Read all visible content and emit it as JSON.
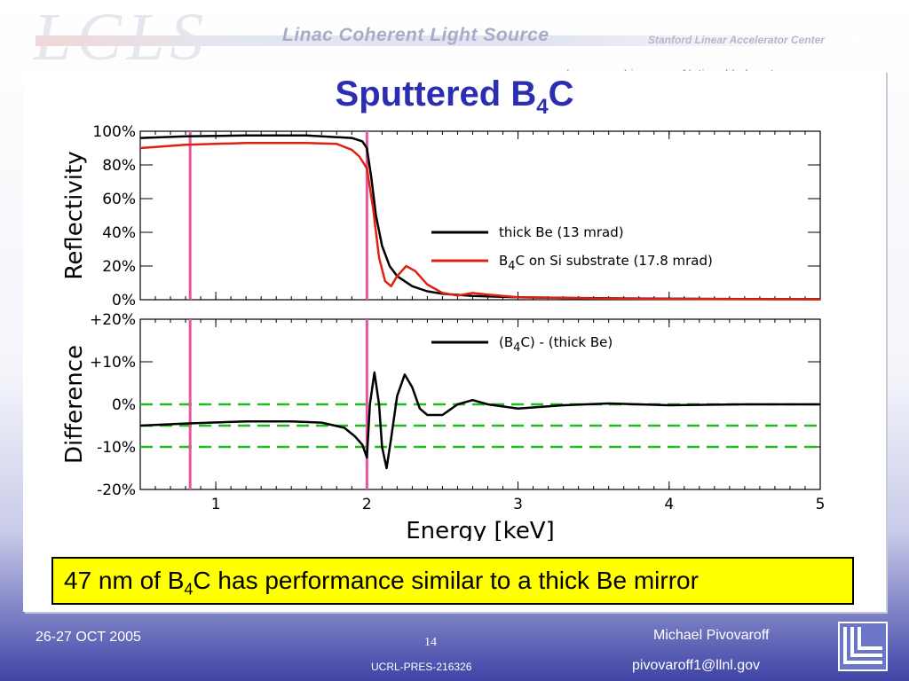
{
  "header": {
    "logo_text": "LCLS",
    "main": "Linac Coherent Light Source",
    "slac": "Stanford Linear Accelerator Center",
    "llnl": "Lawrence Livermore National Laboratory"
  },
  "slide": {
    "title_main": "Sputtered B",
    "title_sub": "4",
    "title_end": "C"
  },
  "caption": {
    "pre": "47 nm of B",
    "sub": "4",
    "post": "C has performance similar to a thick Be mirror"
  },
  "footer": {
    "date": "26-27 OCT 2005",
    "page": "14",
    "code": "UCRL-PRES-216326",
    "name": "Michael Pivovaroff",
    "email": "pivovaroff1@llnl.gov"
  },
  "colors": {
    "title": "#2b2eb0",
    "caption_bg": "#ffff00",
    "black_series": "#000000",
    "red_series": "#dd2211",
    "marker": "#e6559d",
    "ref_lines": "#22bb22"
  },
  "chart_data": [
    {
      "type": "line",
      "ylabel": "Reflectivity",
      "xlim": [
        0.5,
        5
      ],
      "ylim": [
        0,
        100
      ],
      "x_ticks": [
        1,
        2,
        3,
        4,
        5
      ],
      "y_ticks": [
        0,
        20,
        40,
        60,
        80,
        100
      ],
      "y_tick_labels": [
        "0%",
        "20%",
        "40%",
        "60%",
        "80%",
        "100%"
      ],
      "vertical_markers": [
        0.83,
        2.0
      ],
      "series": [
        {
          "name": "thick Be (13 mrad)",
          "color": "#000000",
          "x": [
            0.5,
            0.8,
            1.2,
            1.6,
            1.9,
            1.97,
            2.0,
            2.03,
            2.06,
            2.1,
            2.15,
            2.2,
            2.3,
            2.4,
            2.5,
            2.7,
            3.0,
            3.5,
            4.0,
            4.5,
            5.0
          ],
          "y": [
            96,
            97,
            97.5,
            97.5,
            96,
            94,
            90,
            72,
            50,
            32,
            20,
            14,
            8,
            5,
            3.5,
            2.2,
            1.4,
            0.9,
            0.6,
            0.4,
            0.3
          ]
        },
        {
          "name": "B4C on Si substrate (17.8 mrad)",
          "color": "#dd2211",
          "x": [
            0.5,
            0.8,
            1.2,
            1.6,
            1.8,
            1.9,
            1.95,
            2.0,
            2.04,
            2.08,
            2.12,
            2.16,
            2.2,
            2.26,
            2.32,
            2.4,
            2.5,
            2.6,
            2.7,
            2.8,
            3.0,
            3.5,
            4.0,
            4.5,
            5.0
          ],
          "y": [
            90,
            92,
            93,
            93,
            92.5,
            89,
            85,
            78,
            55,
            25,
            11,
            8,
            14,
            20,
            17,
            9,
            4,
            2.5,
            4,
            3,
            1.5,
            0.8,
            0.5,
            0.3,
            0.2
          ]
        }
      ],
      "legend": [
        {
          "name": "thick Be (13 mrad)",
          "pre": "thick Be (13 mrad)",
          "sub": "",
          "post": ""
        },
        {
          "name": "B4C on Si substrate (17.8 mrad)",
          "pre": "B",
          "sub": "4",
          "post": "C on Si substrate (17.8 mrad)"
        }
      ]
    },
    {
      "type": "line",
      "ylabel": "Difference",
      "xlabel": "Energy [keV]",
      "xlim": [
        0.5,
        5
      ],
      "ylim": [
        -20,
        20
      ],
      "x_ticks": [
        1,
        2,
        3,
        4,
        5
      ],
      "y_ticks": [
        -20,
        -10,
        0,
        10,
        20
      ],
      "y_tick_labels": [
        "-20%",
        "-10%",
        "0%",
        "+10%",
        "+20%"
      ],
      "vertical_markers": [
        0.83,
        2.0
      ],
      "reference_lines": [
        0,
        -5,
        -10
      ],
      "series": [
        {
          "name": "(B4C) - (thick Be)",
          "color": "#000000",
          "x": [
            0.5,
            0.8,
            1.2,
            1.5,
            1.7,
            1.85,
            1.92,
            1.97,
            2.0,
            2.02,
            2.05,
            2.08,
            2.1,
            2.13,
            2.16,
            2.2,
            2.25,
            2.3,
            2.35,
            2.4,
            2.5,
            2.6,
            2.7,
            2.8,
            3.0,
            3.3,
            3.6,
            4.0,
            4.5,
            5.0
          ],
          "y": [
            -5,
            -4.5,
            -4,
            -4,
            -4.3,
            -5.5,
            -7.5,
            -9.5,
            -12.5,
            0,
            7.5,
            0,
            -10,
            -15,
            -8,
            2,
            7,
            4,
            -1,
            -2.5,
            -2.5,
            0,
            1,
            0,
            -1,
            -0.2,
            0.2,
            -0.2,
            0,
            0
          ]
        }
      ],
      "legend": [
        {
          "name": "(B4C) - (thick Be)",
          "pre": "(B",
          "sub": "4",
          "post": "C) - (thick Be)"
        }
      ]
    }
  ]
}
